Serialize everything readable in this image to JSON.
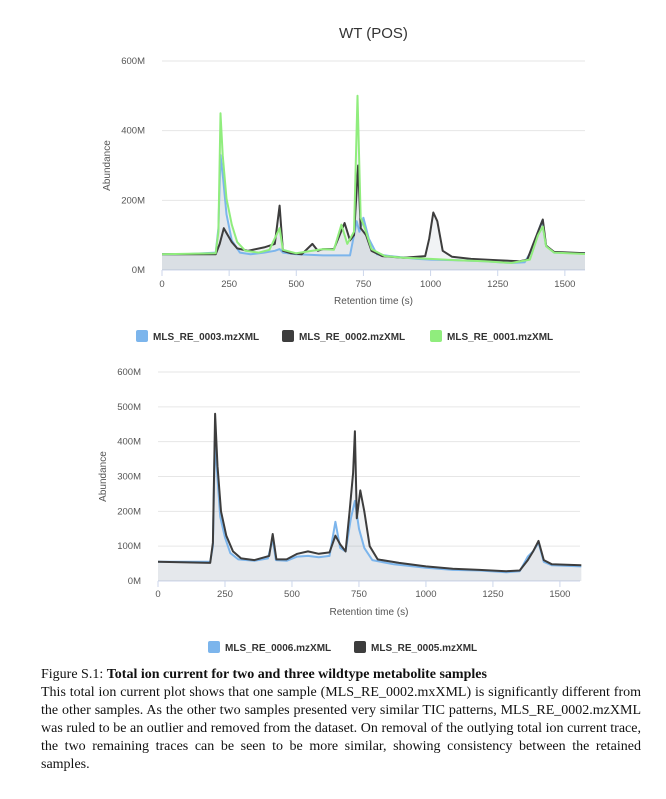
{
  "chart_data": [
    {
      "type": "line",
      "title": "WT (POS)",
      "xlabel": "Retention time (s)",
      "ylabel": "Abundance",
      "xlim": [
        0,
        1575
      ],
      "ylim": [
        0,
        600
      ],
      "x_ticks": [
        "0",
        "250",
        "500",
        "750",
        "1000",
        "1250",
        "1500"
      ],
      "y_ticks": [
        "0M",
        "200M",
        "400M",
        "600M"
      ],
      "legend_position": "bottom-center",
      "series": [
        {
          "name": "MLS_RE_0003.mzXML",
          "color": "#7cb5ec",
          "points": [
            [
              0,
              45
            ],
            [
              100,
              46
            ],
            [
              200,
              50
            ],
            [
              210,
              120
            ],
            [
              218,
              330
            ],
            [
              228,
              260
            ],
            [
              240,
              160
            ],
            [
              260,
              85
            ],
            [
              290,
              50
            ],
            [
              330,
              45
            ],
            [
              380,
              50
            ],
            [
              420,
              55
            ],
            [
              438,
              60
            ],
            [
              450,
              50
            ],
            [
              500,
              45
            ],
            [
              600,
              42
            ],
            [
              700,
              42
            ],
            [
              725,
              140
            ],
            [
              735,
              110
            ],
            [
              750,
              150
            ],
            [
              770,
              90
            ],
            [
              800,
              45
            ],
            [
              850,
              40
            ],
            [
              950,
              32
            ],
            [
              1000,
              30
            ],
            [
              1100,
              28
            ],
            [
              1200,
              25
            ],
            [
              1300,
              20
            ],
            [
              1350,
              22
            ],
            [
              1380,
              60
            ],
            [
              1400,
              110
            ],
            [
              1415,
              140
            ],
            [
              1430,
              70
            ],
            [
              1460,
              50
            ],
            [
              1575,
              48
            ]
          ]
        },
        {
          "name": "MLS_RE_0002.mzXML",
          "color": "#3d3d3d",
          "points": [
            [
              0,
              45
            ],
            [
              200,
              45
            ],
            [
              215,
              75
            ],
            [
              230,
              120
            ],
            [
              245,
              100
            ],
            [
              260,
              80
            ],
            [
              280,
              62
            ],
            [
              320,
              55
            ],
            [
              380,
              65
            ],
            [
              420,
              75
            ],
            [
              438,
              185
            ],
            [
              450,
              55
            ],
            [
              480,
              48
            ],
            [
              520,
              45
            ],
            [
              560,
              75
            ],
            [
              580,
              55
            ],
            [
              600,
              60
            ],
            [
              640,
              60
            ],
            [
              680,
              135
            ],
            [
              700,
              85
            ],
            [
              715,
              100
            ],
            [
              730,
              300
            ],
            [
              740,
              120
            ],
            [
              760,
              100
            ],
            [
              780,
              55
            ],
            [
              820,
              40
            ],
            [
              900,
              35
            ],
            [
              980,
              40
            ],
            [
              995,
              90
            ],
            [
              1010,
              165
            ],
            [
              1025,
              140
            ],
            [
              1045,
              55
            ],
            [
              1080,
              38
            ],
            [
              1150,
              32
            ],
            [
              1250,
              28
            ],
            [
              1330,
              25
            ],
            [
              1360,
              30
            ],
            [
              1380,
              70
            ],
            [
              1400,
              110
            ],
            [
              1418,
              145
            ],
            [
              1430,
              70
            ],
            [
              1460,
              52
            ],
            [
              1575,
              48
            ]
          ]
        },
        {
          "name": "MLS_RE_0001.mzXML",
          "color": "#90ed7d",
          "points": [
            [
              0,
              45
            ],
            [
              200,
              48
            ],
            [
              210,
              110
            ],
            [
              218,
              450
            ],
            [
              226,
              330
            ],
            [
              240,
              205
            ],
            [
              260,
              130
            ],
            [
              280,
              80
            ],
            [
              310,
              55
            ],
            [
              360,
              50
            ],
            [
              400,
              58
            ],
            [
              438,
              120
            ],
            [
              450,
              58
            ],
            [
              500,
              48
            ],
            [
              560,
              55
            ],
            [
              600,
              60
            ],
            [
              640,
              58
            ],
            [
              668,
              130
            ],
            [
              690,
              75
            ],
            [
              715,
              110
            ],
            [
              728,
              500
            ],
            [
              740,
              150
            ],
            [
              755,
              120
            ],
            [
              780,
              60
            ],
            [
              830,
              40
            ],
            [
              900,
              35
            ],
            [
              1000,
              32
            ],
            [
              1100,
              28
            ],
            [
              1200,
              25
            ],
            [
              1300,
              20
            ],
            [
              1370,
              30
            ],
            [
              1400,
              100
            ],
            [
              1418,
              125
            ],
            [
              1430,
              68
            ],
            [
              1460,
              50
            ],
            [
              1575,
              46
            ]
          ]
        }
      ]
    },
    {
      "type": "line",
      "title": "",
      "xlabel": "Retention time (s)",
      "ylabel": "Abundance",
      "xlim": [
        0,
        1575
      ],
      "ylim": [
        0,
        600
      ],
      "x_ticks": [
        "0",
        "250",
        "500",
        "750",
        "1000",
        "1250",
        "1500"
      ],
      "y_ticks": [
        "0M",
        "100M",
        "200M",
        "300M",
        "400M",
        "500M",
        "600M"
      ],
      "legend_position": "bottom-center",
      "series": [
        {
          "name": "MLS_RE_0006.mzXML",
          "color": "#7cb5ec",
          "points": [
            [
              0,
              55
            ],
            [
              195,
              55
            ],
            [
              205,
              100
            ],
            [
              212,
              400
            ],
            [
              220,
              320
            ],
            [
              232,
              185
            ],
            [
              250,
              125
            ],
            [
              270,
              80
            ],
            [
              300,
              62
            ],
            [
              360,
              58
            ],
            [
              410,
              65
            ],
            [
              428,
              120
            ],
            [
              440,
              60
            ],
            [
              480,
              58
            ],
            [
              520,
              70
            ],
            [
              560,
              72
            ],
            [
              600,
              68
            ],
            [
              640,
              72
            ],
            [
              662,
              170
            ],
            [
              680,
              95
            ],
            [
              700,
              85
            ],
            [
              720,
              180
            ],
            [
              735,
              230
            ],
            [
              750,
              150
            ],
            [
              770,
              95
            ],
            [
              800,
              60
            ],
            [
              880,
              48
            ],
            [
              1000,
              38
            ],
            [
              1100,
              32
            ],
            [
              1200,
              30
            ],
            [
              1300,
              25
            ],
            [
              1350,
              28
            ],
            [
              1380,
              70
            ],
            [
              1400,
              85
            ],
            [
              1420,
              110
            ],
            [
              1440,
              55
            ],
            [
              1470,
              45
            ],
            [
              1580,
              42
            ]
          ]
        },
        {
          "name": "MLS_RE_0005.mzXML",
          "color": "#3d3d3d",
          "points": [
            [
              0,
              55
            ],
            [
              195,
              52
            ],
            [
              205,
              110
            ],
            [
              213,
              480
            ],
            [
              222,
              330
            ],
            [
              235,
              200
            ],
            [
              255,
              130
            ],
            [
              280,
              85
            ],
            [
              310,
              65
            ],
            [
              360,
              60
            ],
            [
              415,
              72
            ],
            [
              428,
              135
            ],
            [
              442,
              62
            ],
            [
              480,
              62
            ],
            [
              520,
              78
            ],
            [
              560,
              85
            ],
            [
              600,
              78
            ],
            [
              640,
              82
            ],
            [
              662,
              130
            ],
            [
              680,
              105
            ],
            [
              700,
              85
            ],
            [
              715,
              200
            ],
            [
              728,
              310
            ],
            [
              735,
              430
            ],
            [
              742,
              180
            ],
            [
              755,
              260
            ],
            [
              770,
              200
            ],
            [
              790,
              100
            ],
            [
              820,
              62
            ],
            [
              900,
              52
            ],
            [
              1000,
              42
            ],
            [
              1100,
              35
            ],
            [
              1200,
              32
            ],
            [
              1300,
              28
            ],
            [
              1350,
              30
            ],
            [
              1380,
              60
            ],
            [
              1400,
              85
            ],
            [
              1420,
              115
            ],
            [
              1440,
              60
            ],
            [
              1470,
              48
            ],
            [
              1580,
              45
            ]
          ]
        }
      ]
    }
  ],
  "caption": {
    "label": "Figure S.1:",
    "title": "Total ion current for two and three wildtype metabolite samples",
    "body": "This total ion current plot shows that one sample (MLS_RE_0002.mxXML) is significantly different from the other samples. As the other two samples presented very similar TIC patterns, MLS_RE_0002.mzXML was ruled to be an outlier and removed from the dataset. On removal of the outlying total ion current trace, the two remaining traces can be seen to be more similar, showing consistency between the retained samples."
  }
}
